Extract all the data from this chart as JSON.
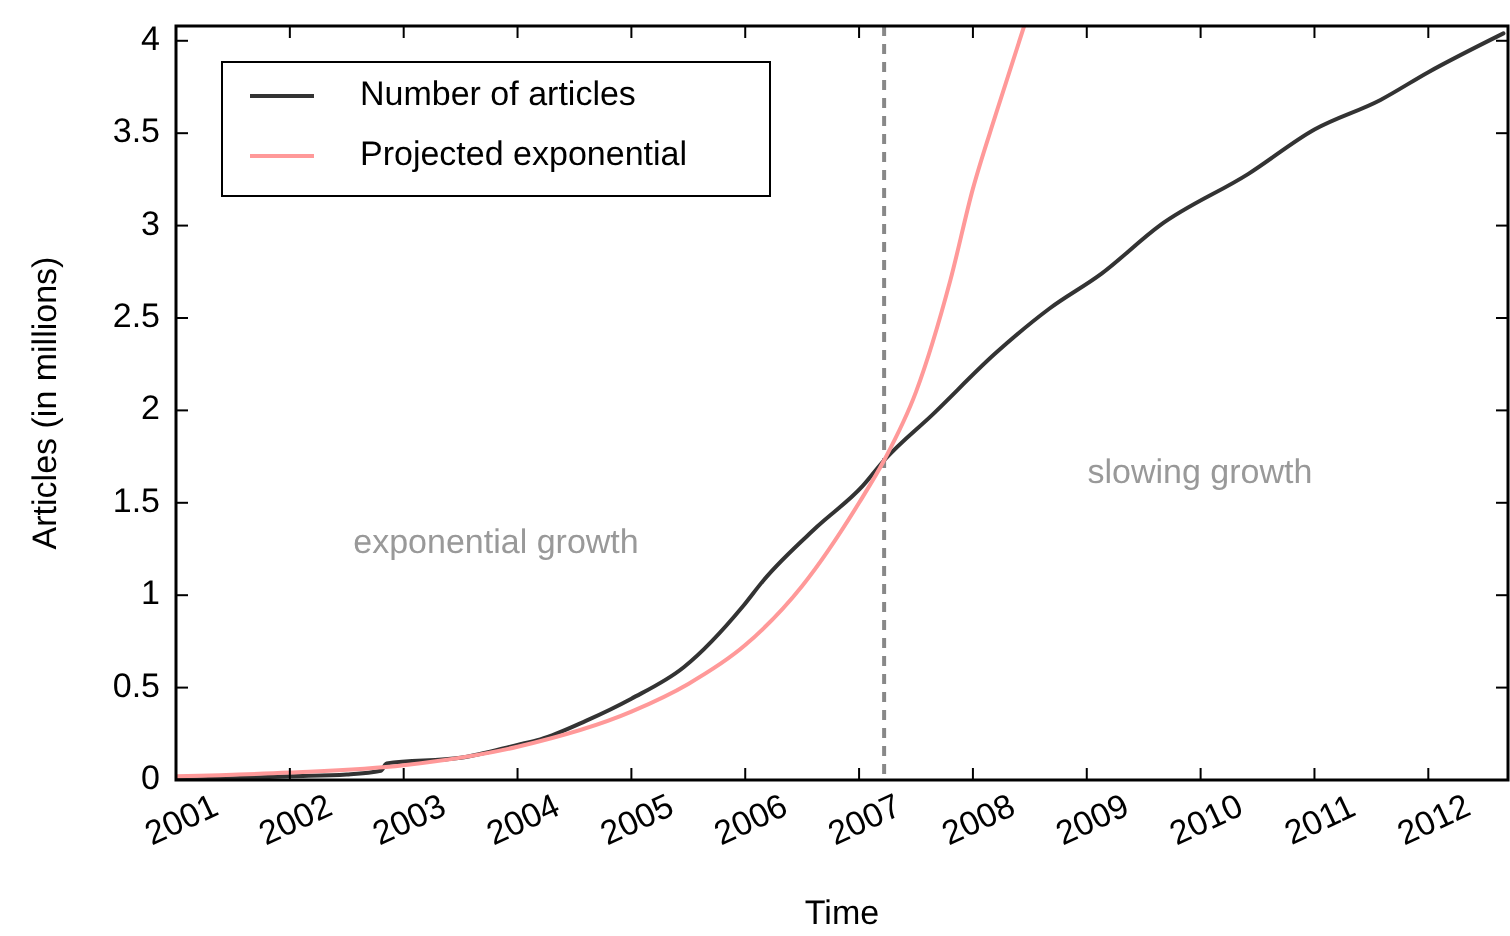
{
  "chart_data": {
    "type": "line",
    "xlabel": "Time",
    "ylabel": "Articles (in millions)",
    "xlim": [
      2001,
      2012.7
    ],
    "xticks": [
      2001,
      2002,
      2003,
      2004,
      2005,
      2006,
      2007,
      2008,
      2009,
      2010,
      2011,
      2012
    ],
    "ylim": [
      0,
      4.08
    ],
    "yticks": [
      0,
      0.5,
      1,
      1.5,
      2,
      2.5,
      3,
      3.5,
      4
    ],
    "legend": "top left",
    "grid": false,
    "line_style": "solid",
    "marker": "none",
    "series": [
      {
        "name": "Number of articles",
        "color": "#333333",
        "x": [
          2001,
          2001.5,
          2002,
          2002.5,
          2002.8,
          2002.85,
          2003.5,
          2004,
          2004.2,
          2004.6,
          2005,
          2005.46,
          2005.98,
          2006.16,
          2006.63,
          2007.03,
          2007.22,
          2007.65,
          2008.2,
          2008.67,
          2009.13,
          2009.64,
          2010.42,
          2011,
          2011.58,
          2012,
          2012.66
        ],
        "values": [
          0,
          0.01,
          0.02,
          0.03,
          0.05,
          0.09,
          0.12,
          0.19,
          0.22,
          0.32,
          0.44,
          0.61,
          0.94,
          1.08,
          1.37,
          1.59,
          1.73,
          1.98,
          2.31,
          2.55,
          2.74,
          3,
          3.28,
          3.52,
          3.68,
          3.83,
          4.04
        ]
      },
      {
        "name": "Projected exponential",
        "color": "#ff9999",
        "x": [
          2001,
          2002,
          2003,
          2004,
          2005,
          2005.5,
          2006,
          2006.5,
          2007,
          2007.22,
          2007.5,
          2007.8,
          2008,
          2008.2,
          2008.45
        ],
        "values": [
          0.02,
          0.04,
          0.08,
          0.18,
          0.37,
          0.52,
          0.73,
          1.05,
          1.5,
          1.73,
          2.1,
          2.7,
          3.2,
          3.6,
          4.08
        ]
      }
    ],
    "ref_lines": [
      {
        "axis": "x",
        "value": 2007.22,
        "color": "#888888",
        "line_style": "dashed"
      }
    ],
    "annotations": [
      "exponential growth",
      "slowing growth"
    ]
  }
}
